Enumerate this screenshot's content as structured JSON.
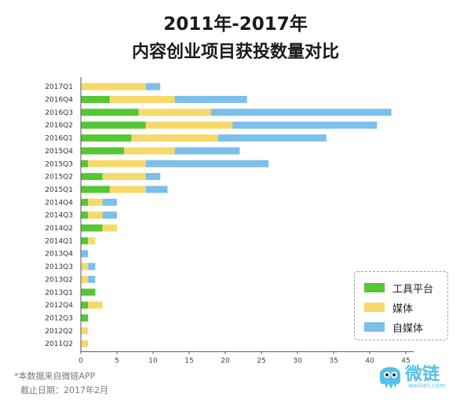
{
  "title_line1": "2011年-2017年",
  "title_line2": "内容创业项目获投数量对比",
  "colors": {
    "platform": "#55c734",
    "media": "#f7d96a",
    "selfmedia": "#7cbfea",
    "title": "#1a1a1a"
  },
  "legend": [
    "工具平台",
    "媒体",
    "自媒体"
  ],
  "footer": {
    "source": "*本数据来自微链APP",
    "cutoff": "截止日期：2017年2月"
  },
  "logo": {
    "name": "微链",
    "sub": "weilian.com",
    "icon": "octopus-logo-icon"
  },
  "chart_data": {
    "type": "bar",
    "orientation": "horizontal",
    "stacked": true,
    "categories": [
      "2017Q1",
      "2016Q4",
      "2016Q3",
      "2016Q2",
      "2016Q1",
      "2015Q4",
      "2015Q3",
      "2015Q2",
      "2015Q1",
      "2014Q4",
      "2014Q3",
      "2014Q2",
      "2014Q1",
      "2013Q4",
      "2013Q3",
      "2013Q2",
      "2013Q1",
      "2012Q4",
      "2012Q3",
      "2012Q2",
      "2011Q2"
    ],
    "series": [
      {
        "name": "工具平台",
        "values": [
          0,
          4,
          8,
          9,
          7,
          6,
          1,
          3,
          4,
          1,
          1,
          3,
          1,
          0,
          0,
          0,
          2,
          1,
          1,
          0,
          0
        ]
      },
      {
        "name": "媒体",
        "values": [
          9,
          9,
          10,
          12,
          12,
          7,
          8,
          6,
          5,
          2,
          2,
          2,
          1,
          0,
          1,
          1,
          0,
          2,
          0,
          1,
          1
        ]
      },
      {
        "name": "自媒体",
        "values": [
          2,
          10,
          25,
          20,
          15,
          9,
          17,
          2,
          3,
          2,
          2,
          0,
          0,
          1,
          1,
          1,
          0,
          0,
          0,
          0,
          0
        ]
      }
    ],
    "xticks": [
      0,
      5,
      10,
      15,
      20,
      25,
      30,
      35,
      40,
      45
    ],
    "xlim": [
      0,
      45
    ],
    "grid": false,
    "legend_position": "bottom-right"
  }
}
